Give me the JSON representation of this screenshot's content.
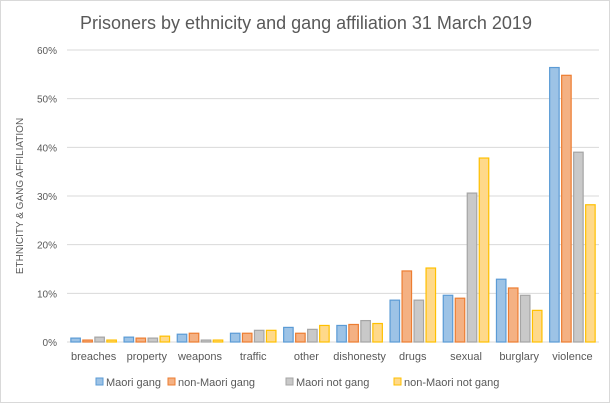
{
  "chart_data": {
    "type": "bar",
    "title": "Prisoners by ethnicity  and gang affiliation  31 March 2019",
    "xlabel": "",
    "ylabel": "ETHNICITY & GANG AFFILIATION",
    "ylim": [
      0,
      60
    ],
    "yticks": [
      0,
      10,
      20,
      30,
      40,
      50,
      60
    ],
    "ytick_labels": [
      "0%",
      "10%",
      "20%",
      "30%",
      "40%",
      "50%",
      "60%"
    ],
    "grid": true,
    "legend_position": "bottom",
    "categories": [
      "breaches",
      "property",
      "weapons",
      "traffic",
      "other",
      "dishonesty",
      "drugs",
      "sexual",
      "burglary",
      "violence"
    ],
    "series": [
      {
        "name": "Maori gang",
        "color": "#5b9bd5",
        "fill": "#9dc3e6",
        "values": [
          0.8,
          1.0,
          1.6,
          1.8,
          3.0,
          3.4,
          8.6,
          9.6,
          12.9,
          56.4
        ]
      },
      {
        "name": "non-Maori gang",
        "color": "#ed7d31",
        "fill": "#f4b183",
        "values": [
          0.4,
          0.8,
          1.8,
          1.8,
          1.8,
          3.6,
          14.6,
          9.0,
          11.1,
          54.8
        ]
      },
      {
        "name": "Maori not gang",
        "color": "#a5a5a5",
        "fill": "#c9c9c9",
        "values": [
          1.0,
          0.8,
          0.4,
          2.4,
          2.6,
          4.4,
          8.6,
          30.6,
          9.6,
          39.0
        ]
      },
      {
        "name": "non-Maori not gang",
        "color": "#ffc000",
        "fill": "#ffd98a",
        "values": [
          0.4,
          1.2,
          0.4,
          2.4,
          3.4,
          3.8,
          15.2,
          37.8,
          6.5,
          28.2
        ]
      }
    ]
  }
}
